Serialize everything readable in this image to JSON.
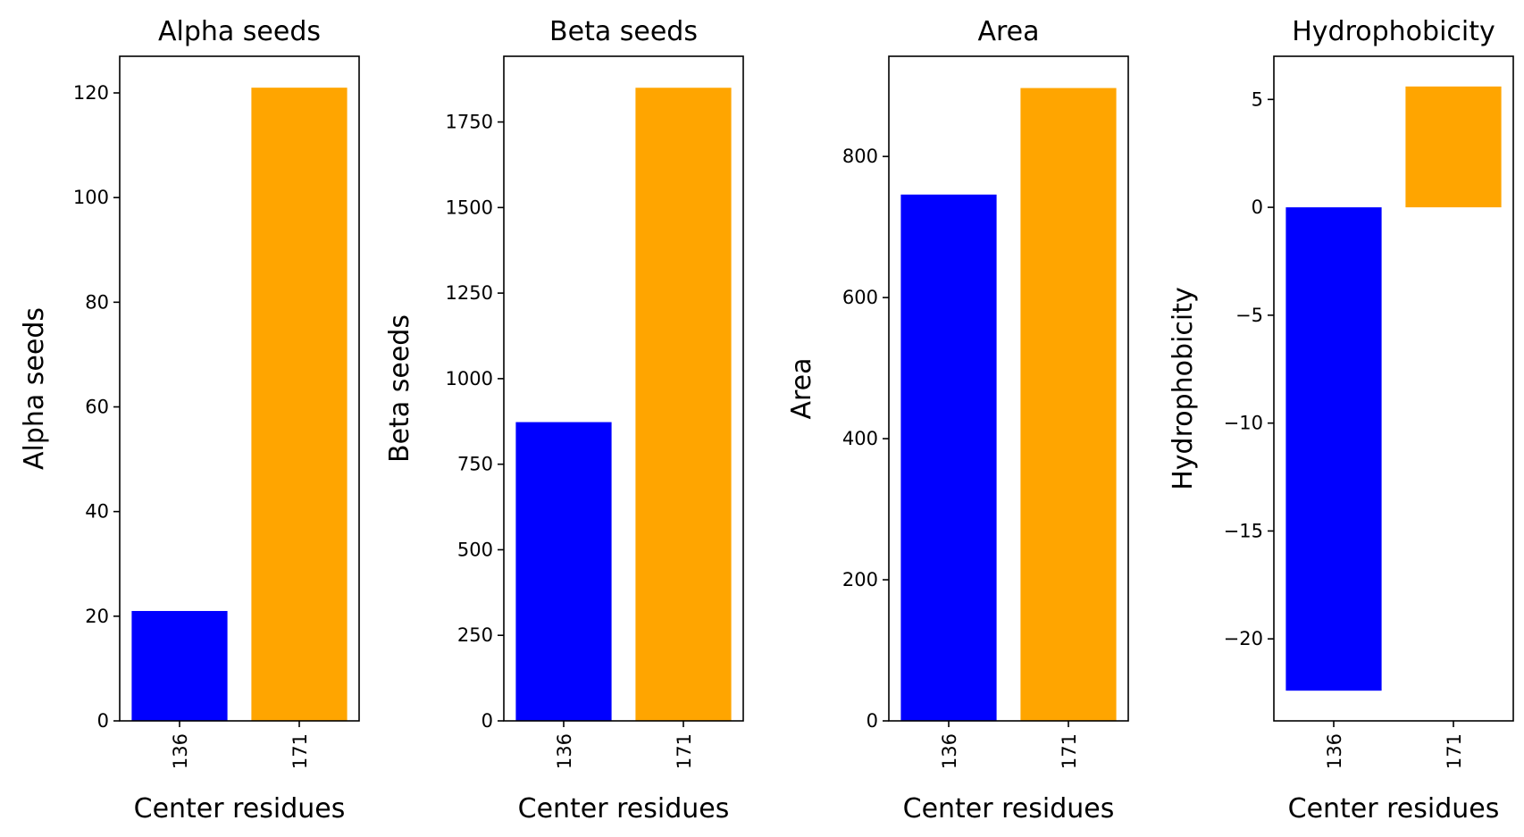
{
  "colors": {
    "series_a": "#0000ff",
    "series_b": "#ffa500",
    "axis": "#000000"
  },
  "chart_data": [
    {
      "type": "bar",
      "title": "Alpha seeds",
      "xlabel": "Center residues",
      "ylabel": "Alpha seeds",
      "categories": [
        "136",
        "171"
      ],
      "values": [
        21,
        121
      ],
      "ylim": [
        0,
        127
      ],
      "yticks": [
        0,
        20,
        40,
        60,
        80,
        100,
        120
      ],
      "ytick_labels": [
        "0",
        "20",
        "40",
        "60",
        "80",
        "100",
        "120"
      ],
      "bar_colors": [
        "#0000ff",
        "#ffa500"
      ],
      "grid": false
    },
    {
      "type": "bar",
      "title": "Beta seeds",
      "xlabel": "Center residues",
      "ylabel": "Beta seeds",
      "categories": [
        "136",
        "171"
      ],
      "values": [
        873,
        1850
      ],
      "ylim": [
        0,
        1942
      ],
      "yticks": [
        0,
        250,
        500,
        750,
        1000,
        1250,
        1500,
        1750
      ],
      "ytick_labels": [
        "0",
        "250",
        "500",
        "750",
        "1000",
        "1250",
        "1500",
        "1750"
      ],
      "bar_colors": [
        "#0000ff",
        "#ffa500"
      ],
      "grid": false
    },
    {
      "type": "bar",
      "title": "Area",
      "xlabel": "Center residues",
      "ylabel": "Area",
      "categories": [
        "136",
        "171"
      ],
      "values": [
        746,
        897
      ],
      "ylim": [
        0,
        942
      ],
      "yticks": [
        0,
        200,
        400,
        600,
        800
      ],
      "ytick_labels": [
        "0",
        "200",
        "400",
        "600",
        "800"
      ],
      "bar_colors": [
        "#0000ff",
        "#ffa500"
      ],
      "grid": false
    },
    {
      "type": "bar",
      "title": "Hydrophobicity",
      "xlabel": "Center residues",
      "ylabel": "Hydrophobicity",
      "categories": [
        "136",
        "171"
      ],
      "values": [
        -22.4,
        5.6
      ],
      "ylim": [
        -23.8,
        7.0
      ],
      "yticks": [
        -20,
        -15,
        -10,
        -5,
        0,
        5
      ],
      "ytick_labels": [
        "−20",
        "−15",
        "−10",
        "−5",
        "0",
        "5"
      ],
      "bar_colors": [
        "#0000ff",
        "#ffa500"
      ],
      "grid": false
    }
  ]
}
